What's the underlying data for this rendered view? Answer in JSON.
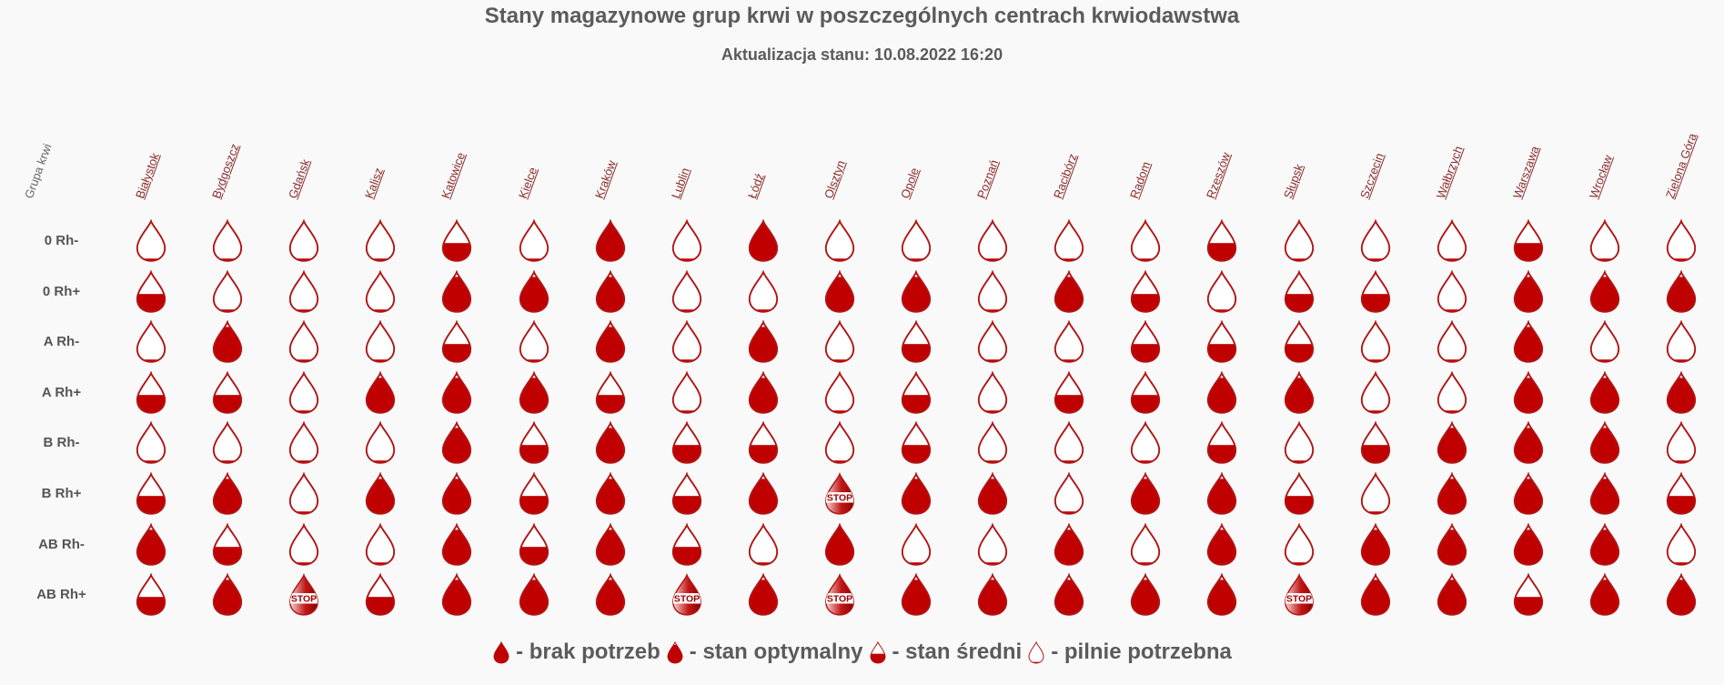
{
  "title": "Stany magazynowe grup krwi w poszczególnych centrach krwiodawstwa",
  "subtitle": "Aktualizacja stanu: 10.08.2022 16:20",
  "group_header": "Grupa krwi",
  "cities": [
    "Białystok",
    "Bydgoszcz",
    "Gdańsk",
    "Kalisz",
    "Katowice",
    "Kielce",
    "Kraków",
    "Lublin",
    "Łódź",
    "Olsztyn",
    "Opole",
    "Poznań",
    "Racibórz",
    "Radom",
    "Rzeszów",
    "Słupsk",
    "Szczecin",
    "Wałbrzych",
    "Warszawa",
    "Wrocław",
    "Zielona Góra"
  ],
  "blood_groups": [
    "0 Rh-",
    "0 Rh+",
    "A Rh-",
    "A Rh+",
    "B Rh-",
    "B Rh+",
    "AB Rh-",
    "AB Rh+"
  ],
  "stop_label": "STOP",
  "level_codes": {
    "F": "brak potrzeb",
    "O": "stan optymalny",
    "H": "stan średni",
    "E": "pilnie potrzebna",
    "S": "STOP"
  },
  "levels": [
    [
      "E",
      "E",
      "E",
      "E",
      "H",
      "E",
      "F",
      "E",
      "F",
      "E",
      "E",
      "E",
      "E",
      "E",
      "H",
      "E",
      "E",
      "E",
      "H",
      "E",
      "E"
    ],
    [
      "H",
      "E",
      "E",
      "E",
      "O",
      "O",
      "O",
      "E",
      "E",
      "O",
      "O",
      "E",
      "O",
      "H",
      "E",
      "H",
      "H",
      "E",
      "O",
      "O",
      "O"
    ],
    [
      "E",
      "O",
      "E",
      "E",
      "H",
      "E",
      "O",
      "E",
      "O",
      "E",
      "H",
      "E",
      "E",
      "H",
      "H",
      "H",
      "E",
      "E",
      "O",
      "E",
      "E"
    ],
    [
      "H",
      "H",
      "E",
      "O",
      "O",
      "O",
      "H",
      "E",
      "O",
      "E",
      "H",
      "E",
      "H",
      "H",
      "O",
      "O",
      "E",
      "E",
      "O",
      "O",
      "O"
    ],
    [
      "E",
      "E",
      "E",
      "E",
      "O",
      "H",
      "O",
      "H",
      "H",
      "E",
      "H",
      "E",
      "E",
      "E",
      "H",
      "E",
      "H",
      "O",
      "O",
      "O",
      "E"
    ],
    [
      "H",
      "O",
      "E",
      "O",
      "O",
      "H",
      "O",
      "H",
      "O",
      "S",
      "O",
      "O",
      "E",
      "O",
      "O",
      "H",
      "E",
      "O",
      "O",
      "O",
      "H"
    ],
    [
      "O",
      "H",
      "E",
      "E",
      "O",
      "H",
      "O",
      "H",
      "E",
      "F",
      "E",
      "E",
      "O",
      "E",
      "O",
      "E",
      "O",
      "O",
      "O",
      "O",
      "E"
    ],
    [
      "H",
      "O",
      "S",
      "H",
      "O",
      "O",
      "O",
      "S",
      "O",
      "S",
      "O",
      "O",
      "O",
      "O",
      "O",
      "S",
      "O",
      "O",
      "H",
      "O",
      "O"
    ]
  ],
  "colors": {
    "drop_red": "#c00000",
    "drop_outline": "#b01515",
    "link": "#8b2b2b",
    "text": "#5b5b5b"
  },
  "legend": [
    {
      "level": "F",
      "label": " - brak potrzeb"
    },
    {
      "level": "O",
      "label": " - stan optymalny"
    },
    {
      "level": "H",
      "label": " - stan średni"
    },
    {
      "level": "E",
      "label": " - pilnie potrzebna"
    }
  ]
}
